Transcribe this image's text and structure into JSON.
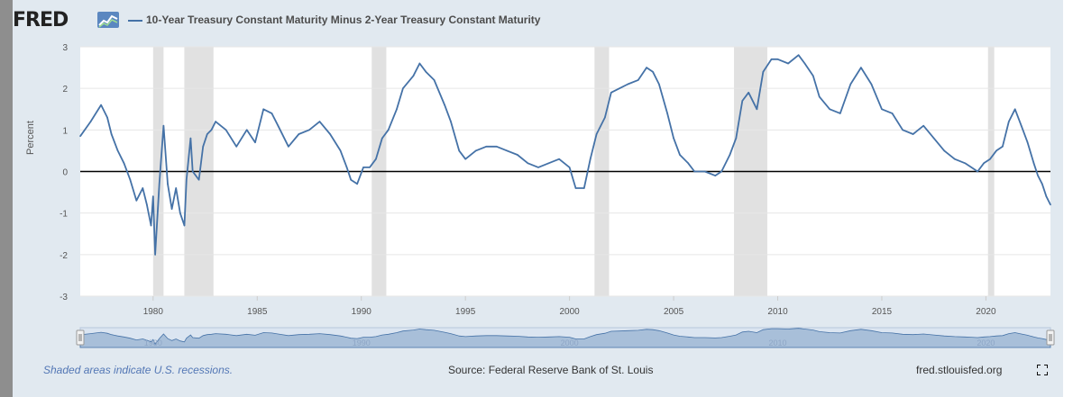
{
  "header": {
    "logo_text": "FRED",
    "legend_label": "10-Year Treasury Constant Maturity Minus 2-Year Treasury Constant Maturity"
  },
  "footer": {
    "recession_note": "Shaded areas indicate U.S. recessions.",
    "source": "Source: Federal Reserve Bank of St. Louis",
    "site": "fred.stlouisfed.org"
  },
  "colors": {
    "line": "#4572a7",
    "recession": "#e1e1e1",
    "zero_line": "#000000",
    "navigator_fill": "#a8bfd9"
  },
  "icons": [
    "fred-logo-chart-icon",
    "fullscreen-icon"
  ],
  "chart_data": {
    "type": "line",
    "title": "",
    "xlabel": "",
    "ylabel": "Percent",
    "xlim": [
      1976.5,
      2023.1
    ],
    "ylim": [
      -3,
      3
    ],
    "y_ticks": [
      -3,
      -2,
      -1,
      0,
      1,
      2,
      3
    ],
    "x_ticks": [
      1980,
      1985,
      1990,
      1995,
      2000,
      2005,
      2010,
      2015,
      2020
    ],
    "navigator_labels": [
      "1980",
      "1990",
      "2000",
      "2010",
      "2020"
    ],
    "grid": "horizontal",
    "zero_line": true,
    "recessions": [
      [
        1980.0,
        1980.5
      ],
      [
        1981.5,
        1982.9
      ],
      [
        1990.5,
        1991.2
      ],
      [
        2001.2,
        2001.9
      ],
      [
        2007.9,
        2009.5
      ],
      [
        2020.1,
        2020.4
      ]
    ],
    "series": [
      {
        "name": "10-Year Treasury Constant Maturity Minus 2-Year Treasury Constant Maturity",
        "x": [
          1976.5,
          1977.0,
          1977.5,
          1977.8,
          1978.0,
          1978.3,
          1978.6,
          1978.9,
          1979.2,
          1979.5,
          1979.7,
          1979.9,
          1980.0,
          1980.1,
          1980.3,
          1980.5,
          1980.7,
          1980.9,
          1981.1,
          1981.3,
          1981.5,
          1981.6,
          1981.8,
          1981.9,
          1982.2,
          1982.4,
          1982.6,
          1982.8,
          1983.0,
          1983.5,
          1984.0,
          1984.5,
          1984.9,
          1985.3,
          1985.7,
          1986.0,
          1986.5,
          1987.0,
          1987.5,
          1988.0,
          1988.5,
          1989.0,
          1989.3,
          1989.5,
          1989.8,
          1990.1,
          1990.4,
          1990.7,
          1991.0,
          1991.3,
          1991.7,
          1992.0,
          1992.5,
          1992.8,
          1993.1,
          1993.5,
          1994.0,
          1994.3,
          1994.7,
          1995.0,
          1995.5,
          1996.0,
          1996.5,
          1997.0,
          1997.5,
          1998.0,
          1998.5,
          1999.0,
          1999.5,
          2000.0,
          2000.3,
          2000.7,
          2001.0,
          2001.3,
          2001.7,
          2002.0,
          2002.4,
          2002.8,
          2003.3,
          2003.7,
          2004.0,
          2004.3,
          2004.7,
          2005.0,
          2005.3,
          2005.7,
          2006.0,
          2006.5,
          2007.0,
          2007.3,
          2007.7,
          2008.0,
          2008.3,
          2008.6,
          2009.0,
          2009.3,
          2009.7,
          2010.0,
          2010.5,
          2011.0,
          2011.3,
          2011.7,
          2012.0,
          2012.5,
          2013.0,
          2013.5,
          2014.0,
          2014.5,
          2015.0,
          2015.5,
          2016.0,
          2016.5,
          2017.0,
          2017.5,
          2018.0,
          2018.5,
          2019.0,
          2019.3,
          2019.6,
          2019.9,
          2020.2,
          2020.5,
          2020.8,
          2021.1,
          2021.4,
          2021.7,
          2022.0,
          2022.3,
          2022.5,
          2022.7,
          2022.9,
          2023.1
        ],
        "values": [
          0.85,
          1.2,
          1.6,
          1.3,
          0.9,
          0.5,
          0.2,
          -0.2,
          -0.7,
          -0.4,
          -0.8,
          -1.3,
          -0.6,
          -2.0,
          -0.3,
          1.1,
          -0.3,
          -0.9,
          -0.4,
          -1.0,
          -1.3,
          -0.2,
          0.8,
          0.0,
          -0.2,
          0.6,
          0.9,
          1.0,
          1.2,
          1.0,
          0.6,
          1.0,
          0.7,
          1.5,
          1.4,
          1.1,
          0.6,
          0.9,
          1.0,
          1.2,
          0.9,
          0.5,
          0.1,
          -0.2,
          -0.3,
          0.1,
          0.1,
          0.3,
          0.8,
          1.0,
          1.5,
          2.0,
          2.3,
          2.6,
          2.4,
          2.2,
          1.6,
          1.2,
          0.5,
          0.3,
          0.5,
          0.6,
          0.6,
          0.5,
          0.4,
          0.2,
          0.1,
          0.2,
          0.3,
          0.1,
          -0.4,
          -0.4,
          0.3,
          0.9,
          1.3,
          1.9,
          2.0,
          2.1,
          2.2,
          2.5,
          2.4,
          2.1,
          1.4,
          0.8,
          0.4,
          0.2,
          0.0,
          0.0,
          -0.1,
          0.0,
          0.4,
          0.8,
          1.7,
          1.9,
          1.5,
          2.4,
          2.7,
          2.7,
          2.6,
          2.8,
          2.6,
          2.3,
          1.8,
          1.5,
          1.4,
          2.1,
          2.5,
          2.1,
          1.5,
          1.4,
          1.0,
          0.9,
          1.1,
          0.8,
          0.5,
          0.3,
          0.2,
          0.1,
          0.0,
          0.2,
          0.3,
          0.5,
          0.6,
          1.2,
          1.5,
          1.1,
          0.7,
          0.2,
          -0.1,
          -0.3,
          -0.6,
          -0.8
        ]
      }
    ]
  }
}
